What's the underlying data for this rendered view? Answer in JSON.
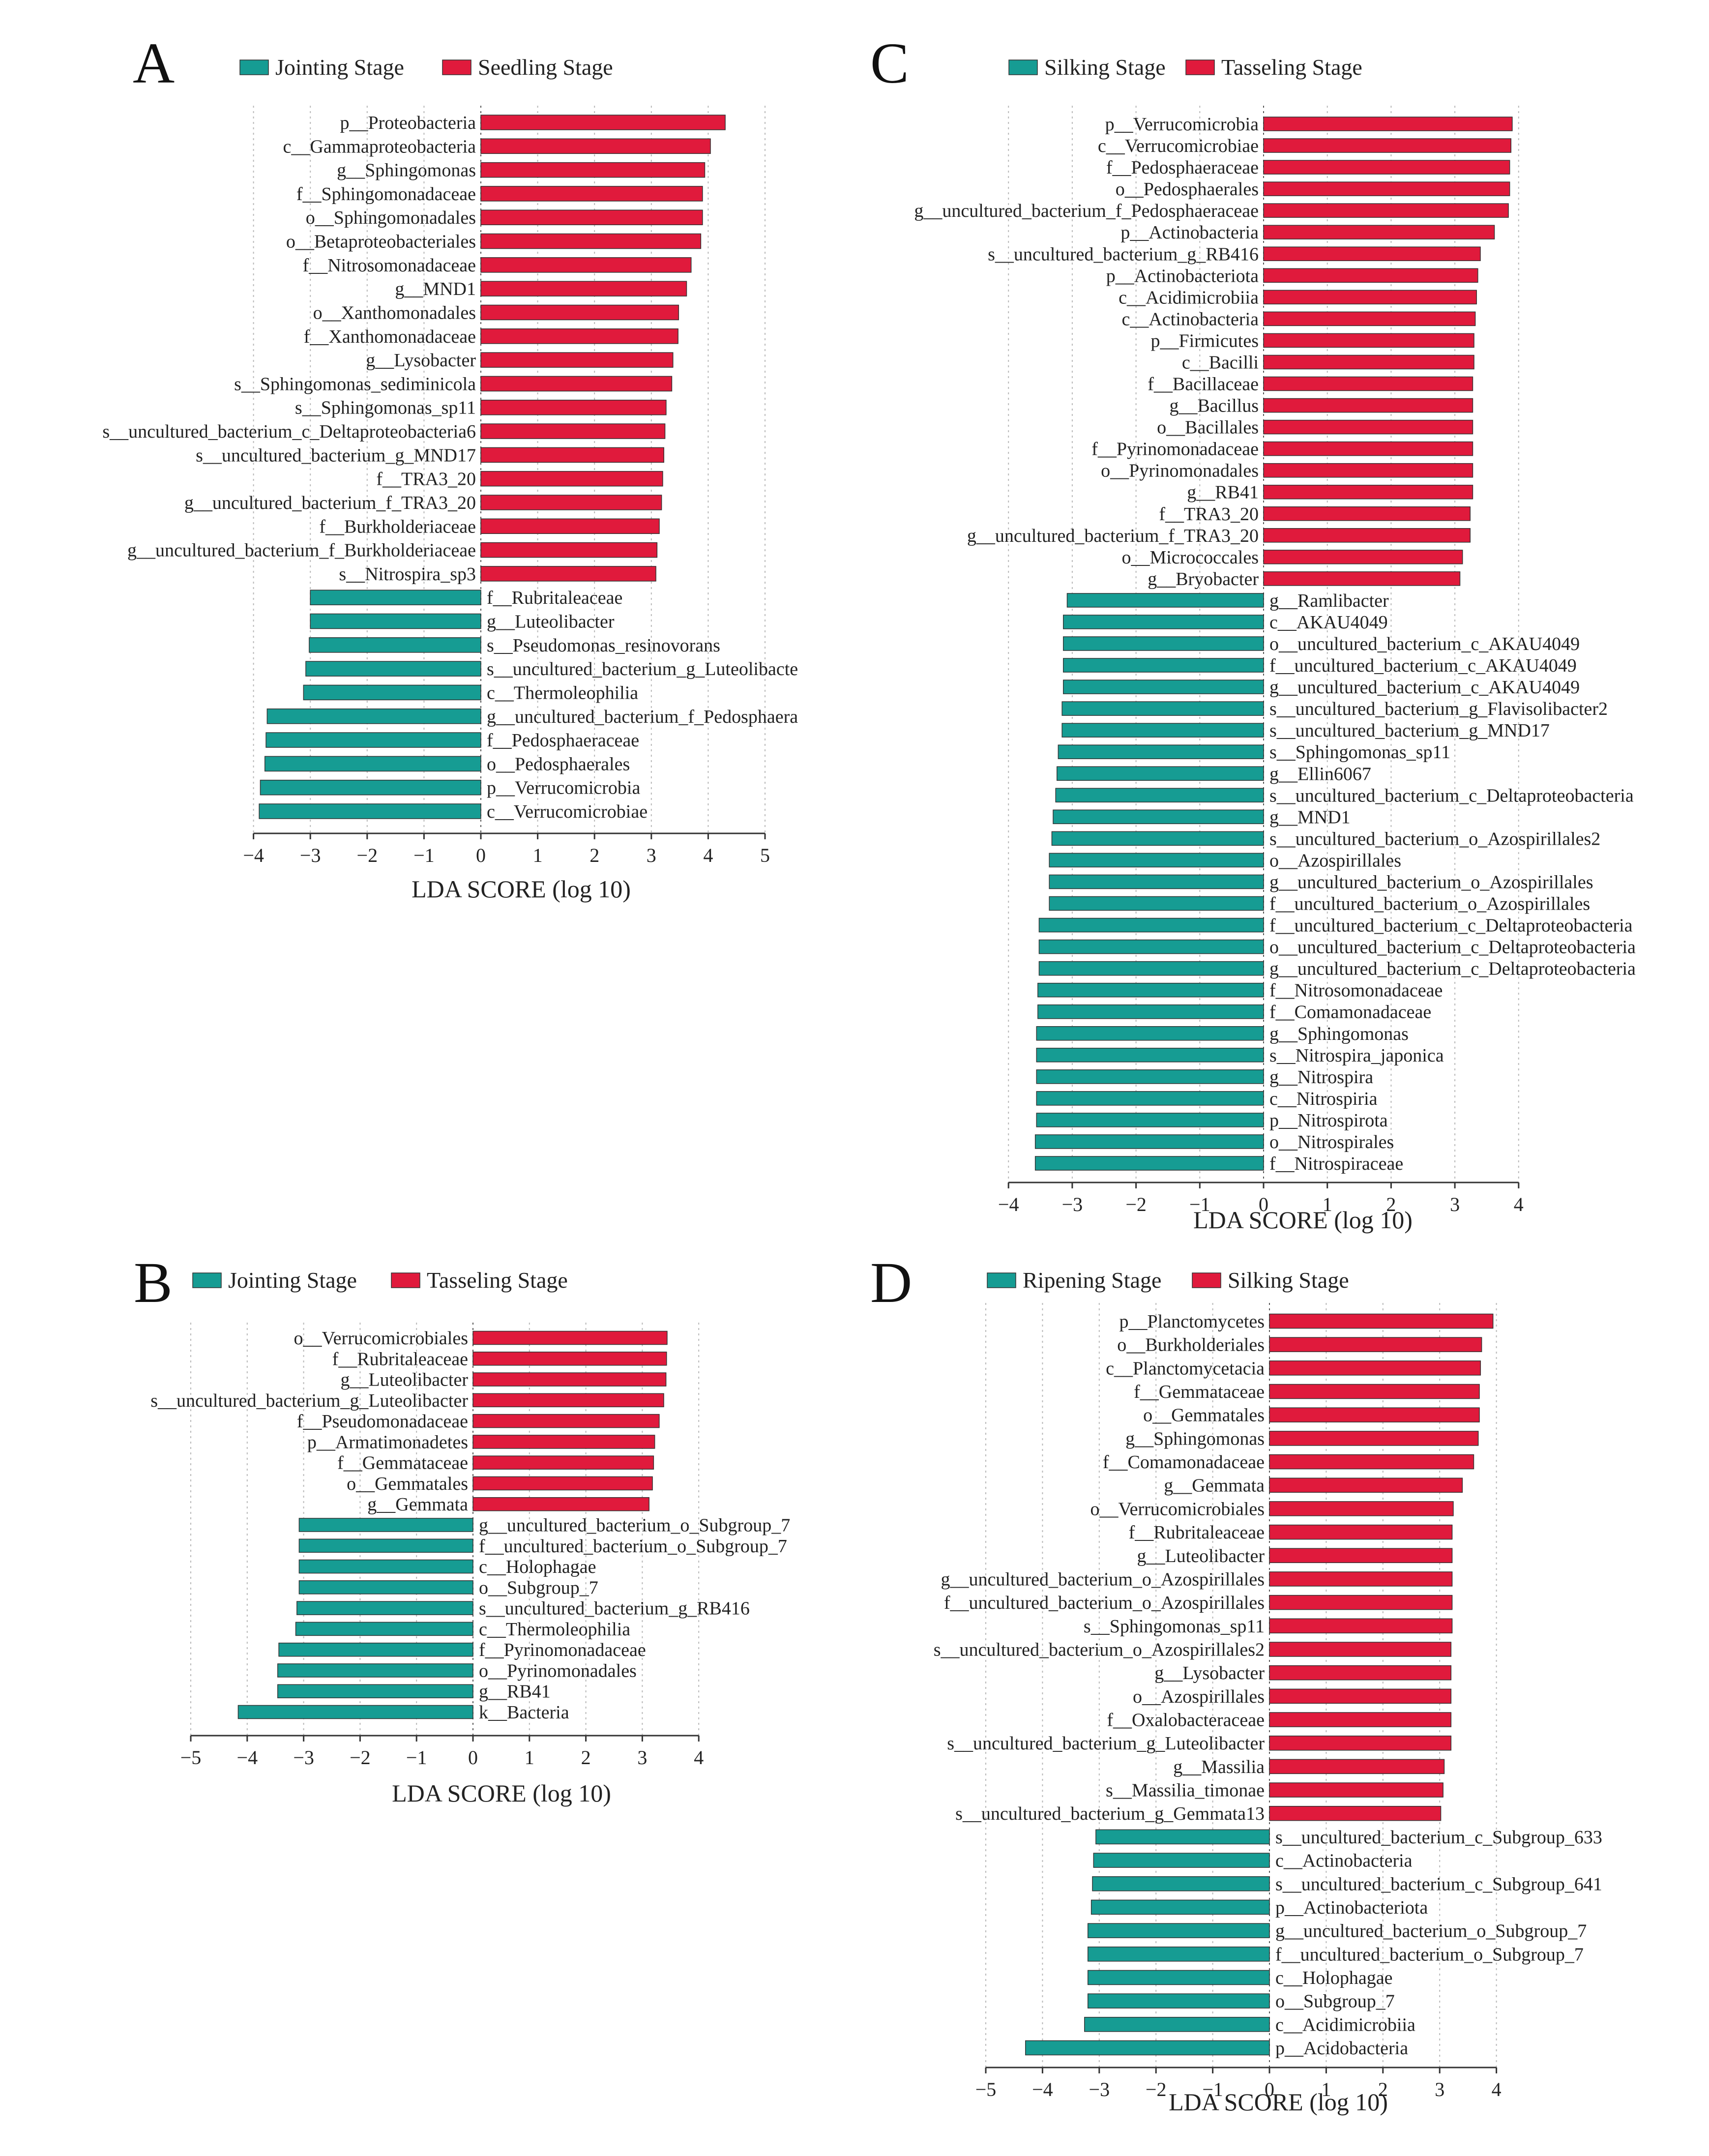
{
  "colors": {
    "positive": "#e01a3c",
    "negative": "#169c93",
    "outline": "#333333"
  },
  "chart_data": [
    {
      "type": "bar",
      "panel": "A",
      "xlabel": "LDA SCORE (log 10)",
      "xlim": [
        -4,
        5
      ],
      "xticks": [
        "-4",
        "-3",
        "-2",
        "-1",
        "0",
        "1",
        "2",
        "3",
        "4",
        "5"
      ],
      "legend": [
        {
          "name": "Jointing Stage",
          "color": "#169c93"
        },
        {
          "name": "Seedling Stage",
          "color": "#e01a3c"
        }
      ],
      "features": [
        {
          "name": "p__Proteobacteria",
          "value": 4.3
        },
        {
          "name": "c__Gammaproteobacteria",
          "value": 4.04
        },
        {
          "name": "g__Sphingomonas",
          "value": 3.94
        },
        {
          "name": "f__Sphingomonadaceae",
          "value": 3.9
        },
        {
          "name": "o__Sphingomonadales",
          "value": 3.9
        },
        {
          "name": "o__Betaproteobacteriales",
          "value": 3.87
        },
        {
          "name": "f__Nitrosomonadaceae",
          "value": 3.7
        },
        {
          "name": "g__MND1",
          "value": 3.62
        },
        {
          "name": "o__Xanthomonadales",
          "value": 3.48
        },
        {
          "name": "f__Xanthomonadaceae",
          "value": 3.47
        },
        {
          "name": "g__Lysobacter",
          "value": 3.38
        },
        {
          "name": "s__Sphingomonas_sediminicola",
          "value": 3.36
        },
        {
          "name": "s__Sphingomonas_sp11",
          "value": 3.26
        },
        {
          "name": "s__uncultured_bacterium_c_Deltaproteobacteria6",
          "value": 3.24
        },
        {
          "name": "s__uncultured_bacterium_g_MND17",
          "value": 3.22
        },
        {
          "name": "f__TRA3_20",
          "value": 3.2
        },
        {
          "name": "g__uncultured_bacterium_f_TRA3_20",
          "value": 3.18
        },
        {
          "name": "f__Burkholderiaceae",
          "value": 3.14
        },
        {
          "name": "g__uncultured_bacterium_f_Burkholderiaceae",
          "value": 3.1
        },
        {
          "name": "s__Nitrospira_sp3",
          "value": 3.08
        },
        {
          "name": "f__Rubritaleaceae",
          "value": -3.0
        },
        {
          "name": "g__Luteolibacter",
          "value": -3.0
        },
        {
          "name": "s__Pseudomonas_resinovorans",
          "value": -3.02
        },
        {
          "name": "s__uncultured_bacterium_g_Luteolibacte",
          "value": -3.08
        },
        {
          "name": "c__Thermoleophilia",
          "value": -3.12
        },
        {
          "name": "g__uncultured_bacterium_f_Pedosphaera",
          "value": -3.76
        },
        {
          "name": "f__Pedosphaeraceae",
          "value": -3.78
        },
        {
          "name": "o__Pedosphaerales",
          "value": -3.8
        },
        {
          "name": "p__Verrucomicrobia",
          "value": -3.88
        },
        {
          "name": "c__Verrucomicrobiae",
          "value": -3.9
        }
      ]
    },
    {
      "type": "bar",
      "panel": "B",
      "xlabel": "LDA SCORE (log 10)",
      "xlim": [
        -5,
        4
      ],
      "xticks": [
        "-5",
        "-4",
        "-3",
        "-2",
        "-1",
        "0",
        "1",
        "2",
        "3",
        "4"
      ],
      "legend": [
        {
          "name": "Jointing Stage",
          "color": "#169c93"
        },
        {
          "name": "Tasseling Stage",
          "color": "#e01a3c"
        }
      ],
      "features": [
        {
          "name": "o__Verrucomicrobiales",
          "value": 3.44
        },
        {
          "name": "f__Rubritaleaceae",
          "value": 3.43
        },
        {
          "name": "g__Luteolibacter",
          "value": 3.42
        },
        {
          "name": "s__uncultured_bacterium_g_Luteolibacter",
          "value": 3.38
        },
        {
          "name": "f__Pseudomonadaceae",
          "value": 3.3
        },
        {
          "name": "p__Armatimonadetes",
          "value": 3.22
        },
        {
          "name": "f__Gemmataceae",
          "value": 3.2
        },
        {
          "name": "o__Gemmatales",
          "value": 3.18
        },
        {
          "name": "g__Gemmata",
          "value": 3.12
        },
        {
          "name": "g__uncultured_bacterium_o_Subgroup_7",
          "value": -3.08
        },
        {
          "name": "f__uncultured_bacterium_o_Subgroup_7",
          "value": -3.08
        },
        {
          "name": "c__Holophagae",
          "value": -3.08
        },
        {
          "name": "o__Subgroup_7",
          "value": -3.08
        },
        {
          "name": "s__uncultured_bacterium_g_RB416",
          "value": -3.12
        },
        {
          "name": "c__Thermoleophilia",
          "value": -3.14
        },
        {
          "name": "f__Pyrinomonadaceae",
          "value": -3.44
        },
        {
          "name": "o__Pyrinomonadales",
          "value": -3.46
        },
        {
          "name": "g__RB41",
          "value": -3.46
        },
        {
          "name": "k__Bacteria",
          "value": -4.16
        }
      ]
    },
    {
      "type": "bar",
      "panel": "C",
      "xlabel": "LDA SCORE (log 10)",
      "xlim": [
        -4,
        4
      ],
      "xticks": [
        "-4",
        "-3",
        "-2",
        "-1",
        "0",
        "1",
        "2",
        "3",
        "4"
      ],
      "legend": [
        {
          "name": "Silking Stage",
          "color": "#169c93"
        },
        {
          "name": "Tasseling Stage",
          "color": "#e01a3c"
        }
      ],
      "features": [
        {
          "name": "p__Verrucomicrobia",
          "value": 3.9
        },
        {
          "name": "c__Verrucomicrobiae",
          "value": 3.88
        },
        {
          "name": "f__Pedosphaeraceae",
          "value": 3.86
        },
        {
          "name": "o__Pedosphaerales",
          "value": 3.86
        },
        {
          "name": "g__uncultured_bacterium_f_Pedosphaeraceae",
          "value": 3.84
        },
        {
          "name": "p__Actinobacteria",
          "value": 3.62
        },
        {
          "name": "s__uncultured_bacterium_g_RB416",
          "value": 3.4
        },
        {
          "name": "p__Actinobacteriota",
          "value": 3.36
        },
        {
          "name": "c__Acidimicrobiia",
          "value": 3.34
        },
        {
          "name": "c__Actinobacteria",
          "value": 3.32
        },
        {
          "name": "p__Firmicutes",
          "value": 3.3
        },
        {
          "name": "c__Bacilli",
          "value": 3.3
        },
        {
          "name": "f__Bacillaceae",
          "value": 3.28
        },
        {
          "name": "g__Bacillus",
          "value": 3.28
        },
        {
          "name": "o__Bacillales",
          "value": 3.28
        },
        {
          "name": "f__Pyrinomonadaceae",
          "value": 3.28
        },
        {
          "name": "o__Pyrinomonadales",
          "value": 3.28
        },
        {
          "name": "g__RB41",
          "value": 3.28
        },
        {
          "name": "f__TRA3_20",
          "value": 3.24
        },
        {
          "name": "g__uncultured_bacterium_f_TRA3_20",
          "value": 3.24
        },
        {
          "name": "o__Micrococcales",
          "value": 3.12
        },
        {
          "name": "g__Bryobacter",
          "value": 3.08
        },
        {
          "name": "g__Ramlibacter",
          "value": -3.08
        },
        {
          "name": "c__AKAU4049",
          "value": -3.14
        },
        {
          "name": "o__uncultured_bacterium_c_AKAU4049",
          "value": -3.14
        },
        {
          "name": "f__uncultured_bacterium_c_AKAU4049",
          "value": -3.14
        },
        {
          "name": "g__uncultured_bacterium_c_AKAU4049",
          "value": -3.14
        },
        {
          "name": "s__uncultured_bacterium_g_Flavisolibacter2",
          "value": -3.16
        },
        {
          "name": "s__uncultured_bacterium_g_MND17",
          "value": -3.16
        },
        {
          "name": "s__Sphingomonas_sp11",
          "value": -3.22
        },
        {
          "name": "g__Ellin6067",
          "value": -3.24
        },
        {
          "name": "s__uncultured_bacterium_c_Deltaproteobacteria",
          "value": -3.26
        },
        {
          "name": "g__MND1",
          "value": -3.3
        },
        {
          "name": "s__uncultured_bacterium_o_Azospirillales2",
          "value": -3.32
        },
        {
          "name": "o__Azospirillales",
          "value": -3.36
        },
        {
          "name": "g__uncultured_bacterium_o_Azospirillales",
          "value": -3.36
        },
        {
          "name": "f__uncultured_bacterium_o_Azospirillales",
          "value": -3.36
        },
        {
          "name": "f__uncultured_bacterium_c_Deltaproteobacteria",
          "value": -3.52
        },
        {
          "name": "o__uncultured_bacterium_c_Deltaproteobacteria",
          "value": -3.52
        },
        {
          "name": "g__uncultured_bacterium_c_Deltaproteobacteria",
          "value": -3.52
        },
        {
          "name": "f__Nitrosomonadaceae",
          "value": -3.54
        },
        {
          "name": "f__Comamonadaceae",
          "value": -3.54
        },
        {
          "name": "g__Sphingomonas",
          "value": -3.56
        },
        {
          "name": "s__Nitrospira_japonica",
          "value": -3.56
        },
        {
          "name": "g__Nitrospira",
          "value": -3.56
        },
        {
          "name": "c__Nitrospiria",
          "value": -3.56
        },
        {
          "name": "p__Nitrospirota",
          "value": -3.56
        },
        {
          "name": "o__Nitrospirales",
          "value": -3.58
        },
        {
          "name": "f__Nitrospiraceae",
          "value": -3.58
        }
      ]
    },
    {
      "type": "bar",
      "panel": "D",
      "xlabel": "LDA SCORE (log 10)",
      "xlim": [
        -5,
        4
      ],
      "xticks": [
        "-5",
        "-4",
        "-3",
        "-2",
        "-1",
        "0",
        "1",
        "2",
        "3",
        "4"
      ],
      "legend": [
        {
          "name": "Ripening Stage",
          "color": "#169c93"
        },
        {
          "name": "Silking Stage",
          "color": "#e01a3c"
        }
      ],
      "features": [
        {
          "name": "p__Planctomycetes",
          "value": 3.94
        },
        {
          "name": "o__Burkholderiales",
          "value": 3.74
        },
        {
          "name": "c__Planctomycetacia",
          "value": 3.72
        },
        {
          "name": "f__Gemmataceae",
          "value": 3.7
        },
        {
          "name": "o__Gemmatales",
          "value": 3.7
        },
        {
          "name": "g__Sphingomonas",
          "value": 3.68
        },
        {
          "name": "f__Comamonadaceae",
          "value": 3.6
        },
        {
          "name": "g__Gemmata",
          "value": 3.4
        },
        {
          "name": "o__Verrucomicrobiales",
          "value": 3.24
        },
        {
          "name": "f__Rubritaleaceae",
          "value": 3.22
        },
        {
          "name": "g__Luteolibacter",
          "value": 3.22
        },
        {
          "name": "g__uncultured_bacterium_o_Azospirillales",
          "value": 3.22
        },
        {
          "name": "f__uncultured_bacterium_o_Azospirillales",
          "value": 3.22
        },
        {
          "name": "s__Sphingomonas_sp11",
          "value": 3.22
        },
        {
          "name": "s__uncultured_bacterium_o_Azospirillales2",
          "value": 3.2
        },
        {
          "name": "g__Lysobacter",
          "value": 3.2
        },
        {
          "name": "o__Azospirillales",
          "value": 3.2
        },
        {
          "name": "f__Oxalobacteraceae",
          "value": 3.2
        },
        {
          "name": "s__uncultured_bacterium_g_Luteolibacter",
          "value": 3.2
        },
        {
          "name": "g__Massilia",
          "value": 3.08
        },
        {
          "name": "s__Massilia_timonae",
          "value": 3.06
        },
        {
          "name": "s__uncultured_bacterium_g_Gemmata13",
          "value": 3.02
        },
        {
          "name": "s__uncultured_bacterium_c_Subgroup_633",
          "value": -3.06
        },
        {
          "name": "c__Actinobacteria",
          "value": -3.1
        },
        {
          "name": "s__uncultured_bacterium_c_Subgroup_641",
          "value": -3.12
        },
        {
          "name": "p__Actinobacteriota",
          "value": -3.14
        },
        {
          "name": "g__uncultured_bacterium_o_Subgroup_7",
          "value": -3.2
        },
        {
          "name": "f__uncultured_bacterium_o_Subgroup_7",
          "value": -3.2
        },
        {
          "name": "c__Holophagae",
          "value": -3.2
        },
        {
          "name": "o__Subgroup_7",
          "value": -3.2
        },
        {
          "name": "c__Acidimicrobiia",
          "value": -3.26
        },
        {
          "name": "p__Acidobacteria",
          "value": -4.3
        }
      ]
    }
  ]
}
